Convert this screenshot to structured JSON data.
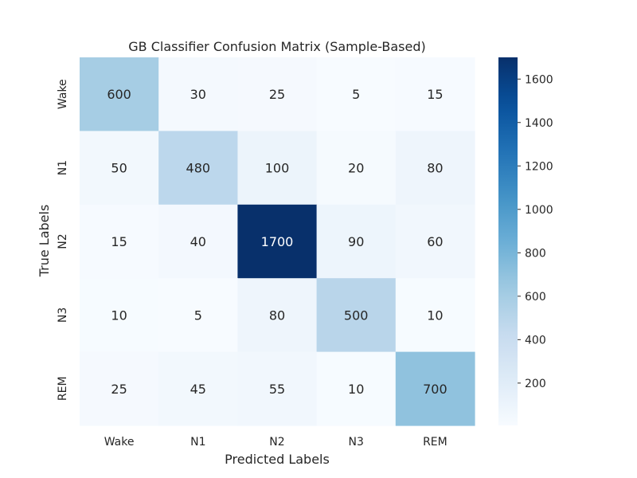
{
  "chart_data": {
    "type": "heatmap",
    "title": "GB Classifier Confusion Matrix (Sample-Based)",
    "xlabel": "Predicted Labels",
    "ylabel": "True Labels",
    "x_categories": [
      "Wake",
      "N1",
      "N2",
      "N3",
      "REM"
    ],
    "y_categories": [
      "Wake",
      "N1",
      "N2",
      "N3",
      "REM"
    ],
    "values": [
      [
        600,
        30,
        25,
        5,
        15
      ],
      [
        50,
        480,
        100,
        20,
        80
      ],
      [
        15,
        40,
        1700,
        90,
        60
      ],
      [
        10,
        5,
        80,
        500,
        10
      ],
      [
        25,
        45,
        55,
        10,
        700
      ]
    ],
    "colormap": "Blues",
    "colorbar": {
      "vmin": 5,
      "vmax": 1700,
      "ticks": [
        200,
        400,
        600,
        800,
        1000,
        1200,
        1400,
        1600
      ]
    },
    "colors": {
      "text_on_light": "#262626",
      "text_on_dark": "#ffffff"
    }
  }
}
